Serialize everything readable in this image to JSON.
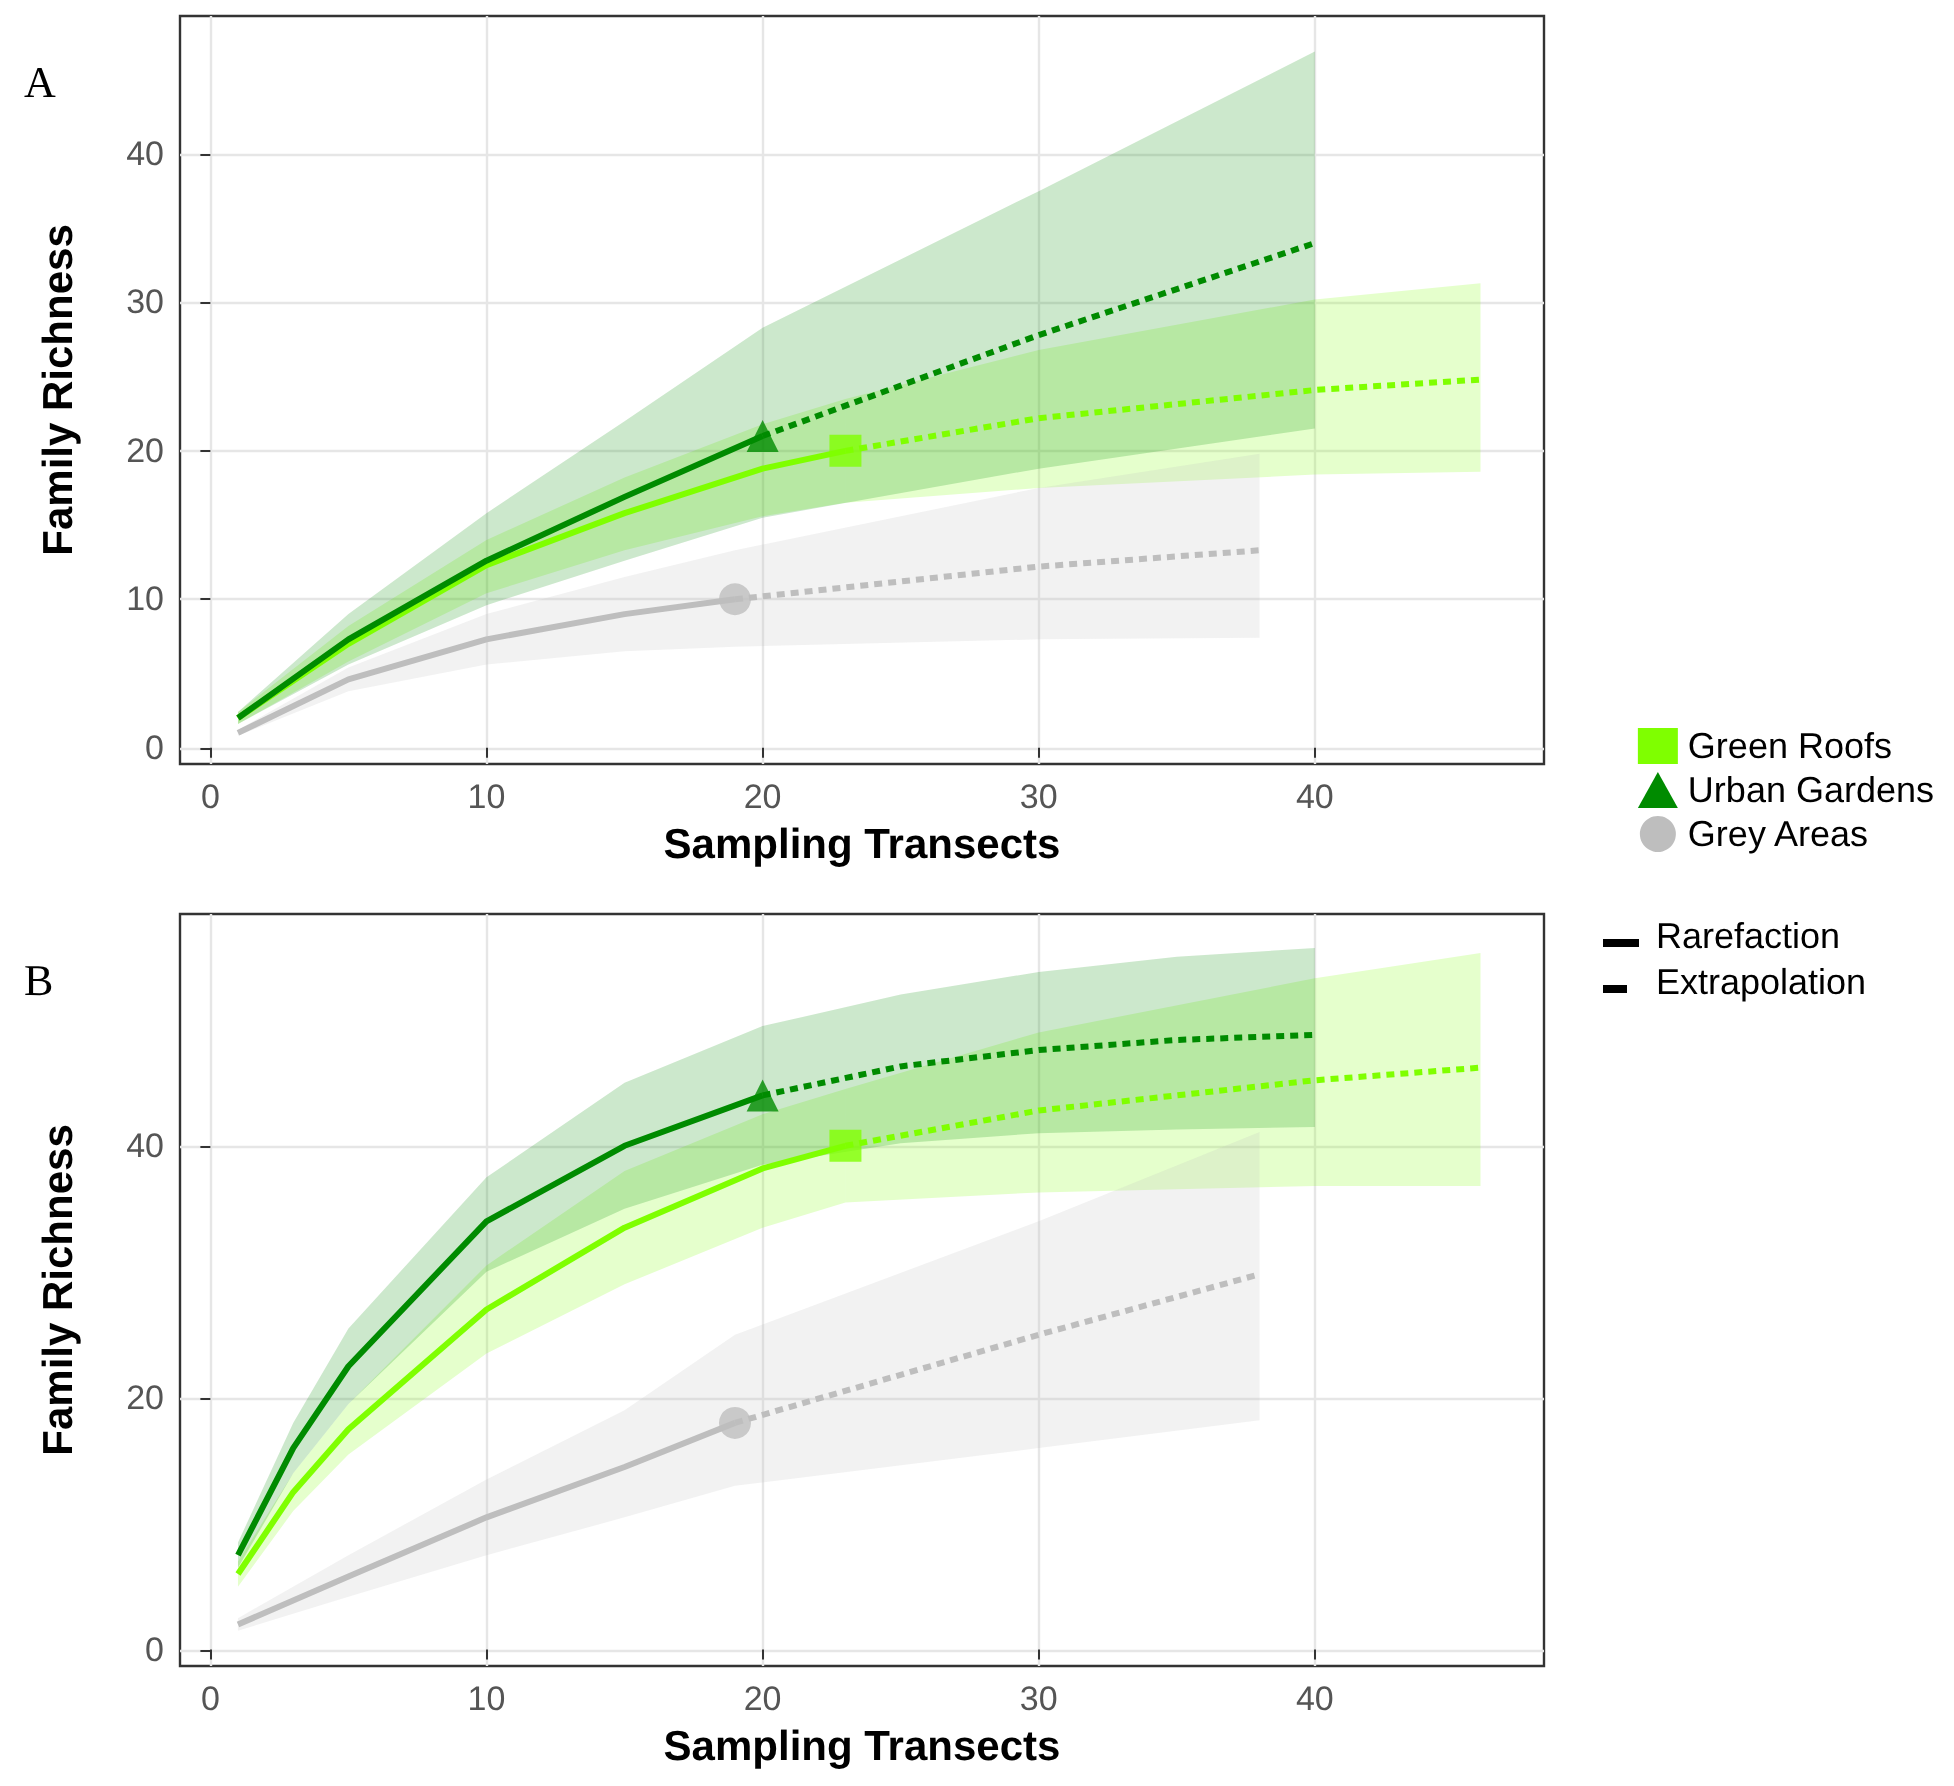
{
  "chart_data": [
    {
      "type": "line",
      "title": "A",
      "xlabel": "Sampling Transects",
      "ylabel": "Family Richness",
      "xlim": [
        -1.1,
        48.3
      ],
      "ylim": [
        -1.1,
        49.3
      ],
      "xticks": [
        0,
        10,
        20,
        30,
        40
      ],
      "yticks": [
        0,
        10,
        20,
        30,
        40
      ],
      "grid": true,
      "legend": "right",
      "series": [
        {
          "name": "Green Roofs",
          "color": "#7fff00",
          "line_style": "solid",
          "x": [
            1,
            5,
            10,
            15,
            20,
            23
          ],
          "values": [
            2,
            7,
            12.3,
            15.8,
            18.8,
            20
          ],
          "lower": [
            1.6,
            5.8,
            10.4,
            13.3,
            15.6,
            16.5
          ],
          "upper": [
            2.4,
            8.2,
            14,
            18.2,
            21.8,
            23.5
          ]
        },
        {
          "color": "#7fff00",
          "line_style": "dashed",
          "x": [
            23,
            30,
            40,
            46
          ],
          "values": [
            20,
            22.2,
            24.1,
            24.8
          ],
          "lower": [
            16.5,
            17.5,
            18.4,
            18.6
          ],
          "upper": [
            23.5,
            26.8,
            30.2,
            31.3
          ]
        },
        {
          "type": "scatter",
          "color": "#7fff00",
          "marker": "square",
          "x": [
            23
          ],
          "values": [
            20
          ]
        },
        {
          "name": "Urban Gardens",
          "color": "#008b00",
          "line_style": "solid",
          "x": [
            1,
            5,
            10,
            15,
            20
          ],
          "values": [
            2,
            7.3,
            12.6,
            16.9,
            21
          ],
          "lower": [
            1.6,
            5.6,
            9.6,
            12.6,
            15.5
          ],
          "upper": [
            2.4,
            9,
            15.8,
            22,
            28.3
          ]
        },
        {
          "color": "#008b00",
          "line_style": "dashed",
          "x": [
            20,
            30,
            40
          ],
          "values": [
            21,
            27.8,
            34
          ],
          "lower": [
            15.5,
            18.8,
            21.5
          ],
          "upper": [
            28.3,
            37.5,
            46.9
          ]
        },
        {
          "type": "scatter",
          "color": "#008b00",
          "marker": "triangle",
          "x": [
            20
          ],
          "values": [
            21
          ]
        },
        {
          "name": "Grey Areas",
          "color": "#bebebe",
          "line_style": "solid",
          "x": [
            1,
            5,
            10,
            15,
            19
          ],
          "values": [
            1,
            4.6,
            7.3,
            9,
            10
          ],
          "lower": [
            0.8,
            3.8,
            5.6,
            6.5,
            6.8
          ],
          "upper": [
            1.2,
            5.4,
            9,
            11.5,
            13.3
          ]
        },
        {
          "color": "#bebebe",
          "line_style": "dashed",
          "x": [
            19,
            30,
            38
          ],
          "values": [
            10,
            12.2,
            13.3
          ],
          "lower": [
            6.8,
            7.3,
            7.4
          ],
          "upper": [
            13.3,
            17.5,
            19.8
          ]
        },
        {
          "type": "scatter",
          "color": "#bebebe",
          "marker": "circle",
          "x": [
            19
          ],
          "values": [
            10
          ]
        }
      ]
    },
    {
      "type": "line",
      "title": "B",
      "xlabel": "Sampling Transects",
      "ylabel": "Family Richness",
      "xlim": [
        -1.1,
        48.3
      ],
      "ylim": [
        -1.3,
        58.4
      ],
      "xticks": [
        0,
        10,
        20,
        30,
        40
      ],
      "yticks": [
        0,
        20,
        40
      ],
      "grid": true,
      "annotations": [
        "Rarefaction",
        "Extrapolation"
      ],
      "series": [
        {
          "color": "#7fff00",
          "line_style": "solid",
          "x": [
            1,
            3,
            5,
            10,
            15,
            20,
            23
          ],
          "values": [
            6,
            12.5,
            17.5,
            27,
            33.5,
            38.2,
            40
          ],
          "lower": [
            5,
            11,
            15.5,
            23.5,
            29,
            33.5,
            35.5
          ],
          "upper": [
            7,
            14,
            19.5,
            30.5,
            38,
            42.5,
            44.5
          ]
        },
        {
          "color": "#7fff00",
          "line_style": "dashed",
          "x": [
            23,
            30,
            40,
            46
          ],
          "values": [
            40,
            42.8,
            45.2,
            46.2
          ],
          "lower": [
            35.5,
            36.3,
            36.8,
            36.8
          ],
          "upper": [
            44.5,
            49,
            53.3,
            55.3
          ]
        },
        {
          "type": "scatter",
          "color": "#7fff00",
          "marker": "square",
          "x": [
            23
          ],
          "values": [
            40
          ]
        },
        {
          "color": "#008b00",
          "line_style": "solid",
          "x": [
            1,
            3,
            5,
            10,
            15,
            20
          ],
          "values": [
            7.5,
            16,
            22.5,
            34,
            40,
            44
          ],
          "lower": [
            6.5,
            14,
            19.5,
            30,
            35,
            38.5
          ],
          "upper": [
            8.5,
            18,
            25.5,
            37.5,
            45,
            49.5
          ]
        },
        {
          "color": "#008b00",
          "line_style": "dashed",
          "x": [
            20,
            25,
            30,
            35,
            40
          ],
          "values": [
            44,
            46.3,
            47.6,
            48.4,
            48.8
          ],
          "lower": [
            38.5,
            40.2,
            41,
            41.3,
            41.5
          ],
          "upper": [
            49.5,
            52,
            53.8,
            55,
            55.7
          ]
        },
        {
          "type": "scatter",
          "color": "#008b00",
          "marker": "triangle",
          "x": [
            20
          ],
          "values": [
            44
          ]
        },
        {
          "color": "#bebebe",
          "line_style": "solid",
          "x": [
            1,
            5,
            10,
            15,
            19
          ],
          "values": [
            2,
            5.8,
            10.5,
            14.5,
            18
          ],
          "lower": [
            1.5,
            4.2,
            7.5,
            10.5,
            13
          ],
          "upper": [
            2.5,
            7.5,
            13.5,
            19,
            25
          ]
        },
        {
          "color": "#bebebe",
          "line_style": "dashed",
          "x": [
            19,
            30,
            38
          ],
          "values": [
            18,
            25,
            29.8
          ],
          "lower": [
            13,
            16,
            18.2
          ],
          "upper": [
            25,
            34,
            41.1
          ]
        },
        {
          "type": "scatter",
          "color": "#bebebe",
          "marker": "circle",
          "x": [
            19
          ],
          "values": [
            18
          ]
        }
      ]
    }
  ]
}
